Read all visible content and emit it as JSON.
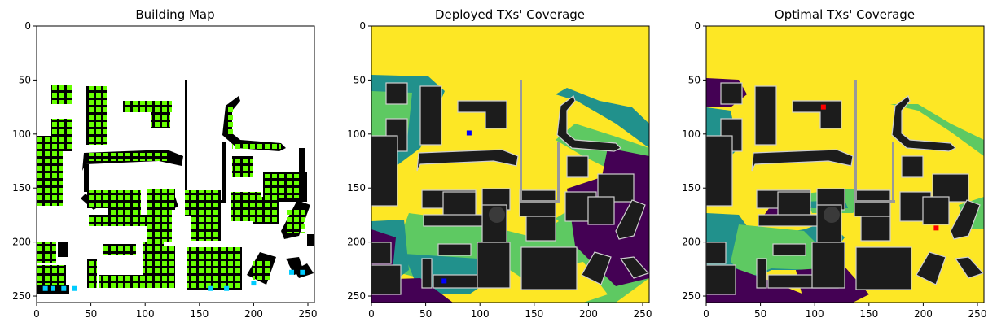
{
  "chart_data": [
    {
      "type": "heatmap",
      "title": "Building Map",
      "xlim": [
        0,
        256
      ],
      "ylim": [
        256,
        0
      ],
      "x_ticks": [
        0,
        50,
        100,
        150,
        200,
        250
      ],
      "y_ticks": [
        0,
        50,
        100,
        150,
        200,
        250
      ],
      "colors": {
        "background": "#ffffff",
        "building": "#000000",
        "rx_point": "#66ff00",
        "tx_point": "#00ccff"
      },
      "tx_points": [
        [
          8,
          243
        ],
        [
          15,
          243
        ],
        [
          25,
          243
        ],
        [
          35,
          243
        ],
        [
          160,
          243
        ],
        [
          175,
          243
        ],
        [
          200,
          238
        ],
        [
          235,
          228
        ],
        [
          245,
          228
        ]
      ]
    },
    {
      "type": "heatmap",
      "title": "Deployed TXs' Coverage",
      "xlim": [
        0,
        256
      ],
      "ylim": [
        256,
        0
      ],
      "x_ticks": [
        0,
        50,
        100,
        150,
        200,
        250
      ],
      "y_ticks": [
        0,
        50,
        100,
        150,
        200,
        250
      ],
      "colors": {
        "covered": "#fde725",
        "high": "#5ec962",
        "mid": "#21918c",
        "low": "#440154",
        "building": "#1c1c1c",
        "tx_marker": "#0000ff"
      },
      "tx_markers": [
        [
          90,
          99
        ],
        [
          67,
          236
        ]
      ]
    },
    {
      "type": "heatmap",
      "title": "Optimal TXs' Coverage",
      "xlim": [
        0,
        256
      ],
      "ylim": [
        256,
        0
      ],
      "x_ticks": [
        0,
        50,
        100,
        150,
        200,
        250
      ],
      "y_ticks": [
        0,
        50,
        100,
        150,
        200,
        250
      ],
      "colors": {
        "covered": "#fde725",
        "high": "#5ec962",
        "mid": "#21918c",
        "low": "#440154",
        "building": "#1c1c1c",
        "tx_marker": "#ff0000"
      },
      "tx_markers": [
        [
          108,
          75
        ],
        [
          212,
          187
        ]
      ]
    }
  ]
}
